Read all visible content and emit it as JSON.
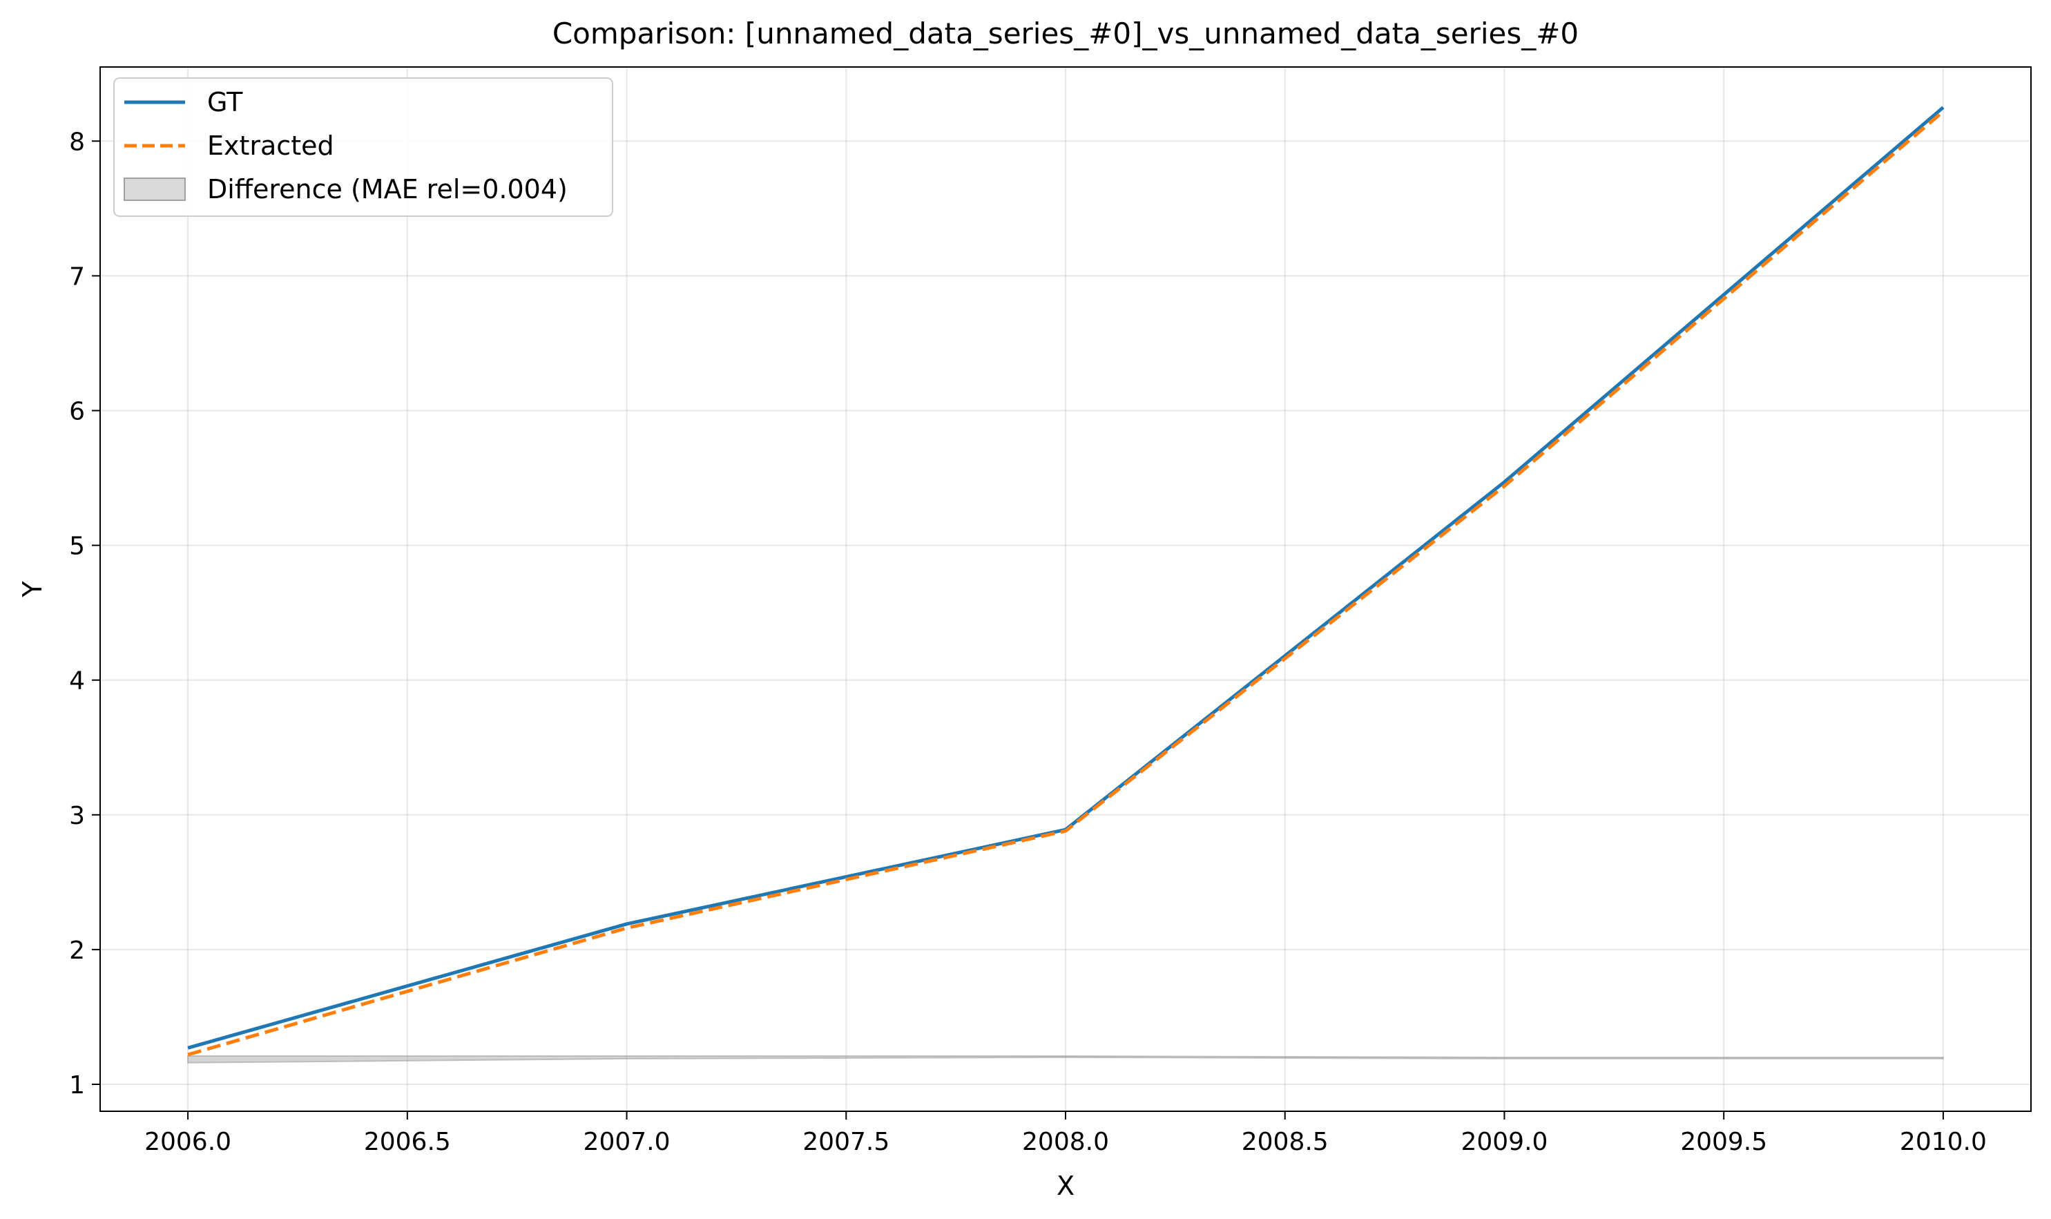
{
  "chart_data": {
    "type": "line",
    "title": "Comparison: [unnamed_data_series_#0]_vs_unnamed_data_series_#0",
    "xlabel": "X",
    "ylabel": "Y",
    "xlim": [
      2005.8,
      2010.2
    ],
    "ylim": [
      0.8,
      8.55
    ],
    "xticks": [
      2006.0,
      2006.5,
      2007.0,
      2007.5,
      2008.0,
      2008.5,
      2009.0,
      2009.5,
      2010.0
    ],
    "xtick_labels": [
      "2006.0",
      "2006.5",
      "2007.0",
      "2007.5",
      "2008.0",
      "2008.5",
      "2009.0",
      "2009.5",
      "2010.0"
    ],
    "yticks": [
      1,
      2,
      3,
      4,
      5,
      6,
      7,
      8
    ],
    "ytick_labels": [
      "1",
      "2",
      "3",
      "4",
      "5",
      "6",
      "7",
      "8"
    ],
    "grid": true,
    "legend_position": "top-left",
    "x": [
      2006,
      2007,
      2008,
      2009,
      2010
    ],
    "series": [
      {
        "name": "GT",
        "values": [
          1.27,
          2.19,
          2.89,
          5.47,
          8.25
        ],
        "color": "#1f77b4",
        "style": "solid"
      },
      {
        "name": "Extracted",
        "values": [
          1.22,
          2.16,
          2.88,
          5.44,
          8.22
        ],
        "color": "#ff7f0e",
        "style": "dashed"
      }
    ],
    "difference_band": {
      "name": "Difference (MAE rel=0.004)",
      "lower": [
        1.16,
        1.19,
        1.2,
        1.19,
        1.19
      ],
      "upper": [
        1.21,
        1.21,
        1.21,
        1.2,
        1.2
      ],
      "color": "#a0a0a0"
    }
  }
}
